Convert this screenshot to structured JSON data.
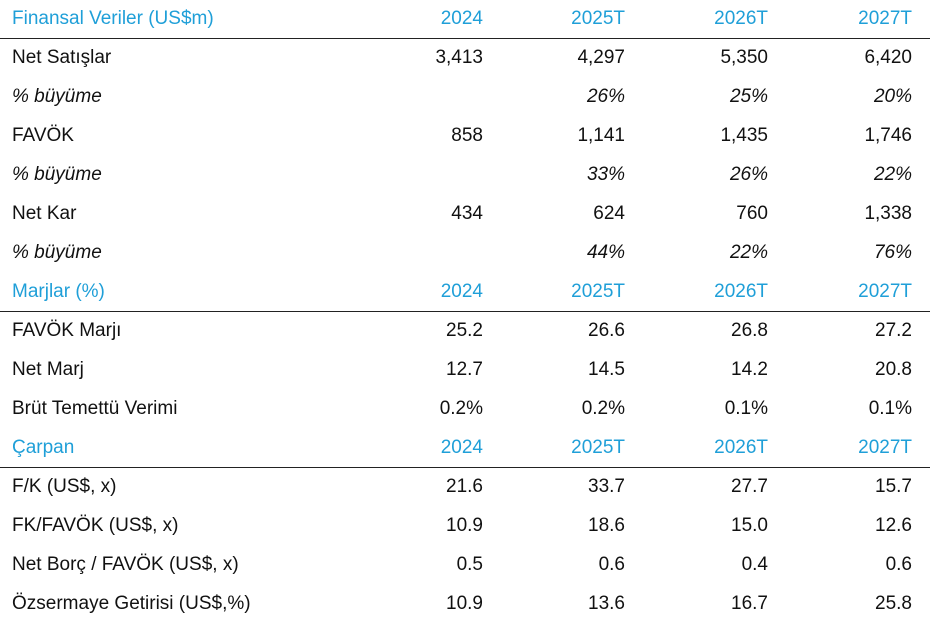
{
  "sections": [
    {
      "header": [
        "Finansal Veriler (US$m)",
        "2024",
        "2025T",
        "2026T",
        "2027T"
      ],
      "rows": [
        {
          "cells": [
            "Net Satışlar",
            "3,413",
            "4,297",
            "5,350",
            "6,420"
          ],
          "italic": false
        },
        {
          "cells": [
            "% büyüme",
            null,
            "26%",
            "25%",
            "20%"
          ],
          "italic": true
        },
        {
          "cells": [
            "FAVÖK",
            "858",
            "1,141",
            "1,435",
            "1,746"
          ],
          "italic": false
        },
        {
          "cells": [
            "% büyüme",
            null,
            "33%",
            "26%",
            "22%"
          ],
          "italic": true
        },
        {
          "cells": [
            "Net Kar",
            "434",
            "624",
            "760",
            "1,338"
          ],
          "italic": false
        },
        {
          "cells": [
            "% büyüme",
            null,
            "44%",
            "22%",
            "76%"
          ],
          "italic": true
        }
      ]
    },
    {
      "header": [
        "Marjlar (%)",
        "2024",
        "2025T",
        "2026T",
        "2027T"
      ],
      "rows": [
        {
          "cells": [
            "FAVÖK Marjı",
            "25.2",
            "26.6",
            "26.8",
            "27.2"
          ],
          "italic": false
        },
        {
          "cells": [
            "Net Marj",
            "12.7",
            "14.5",
            "14.2",
            "20.8"
          ],
          "italic": false
        },
        {
          "cells": [
            "Brüt Temettü Verimi",
            "0.2%",
            "0.2%",
            "0.1%",
            "0.1%"
          ],
          "italic": false
        }
      ]
    },
    {
      "header": [
        "Çarpan",
        "2024",
        "2025T",
        "2026T",
        "2027T"
      ],
      "rows": [
        {
          "cells": [
            "F/K (US$, x)",
            "21.6",
            "33.7",
            "27.7",
            "15.7"
          ],
          "italic": false
        },
        {
          "cells": [
            "FK/FAVÖK (US$, x)",
            "10.9",
            "18.6",
            "15.0",
            "12.6"
          ],
          "italic": false
        },
        {
          "cells": [
            "Net Borç / FAVÖK (US$, x)",
            "0.5",
            "0.6",
            "0.4",
            "0.6"
          ],
          "italic": false
        },
        {
          "cells": [
            "Özsermaye Getirisi (US$,%)",
            "10.9",
            "13.6",
            "16.7",
            "25.8"
          ],
          "italic": false
        }
      ]
    }
  ]
}
